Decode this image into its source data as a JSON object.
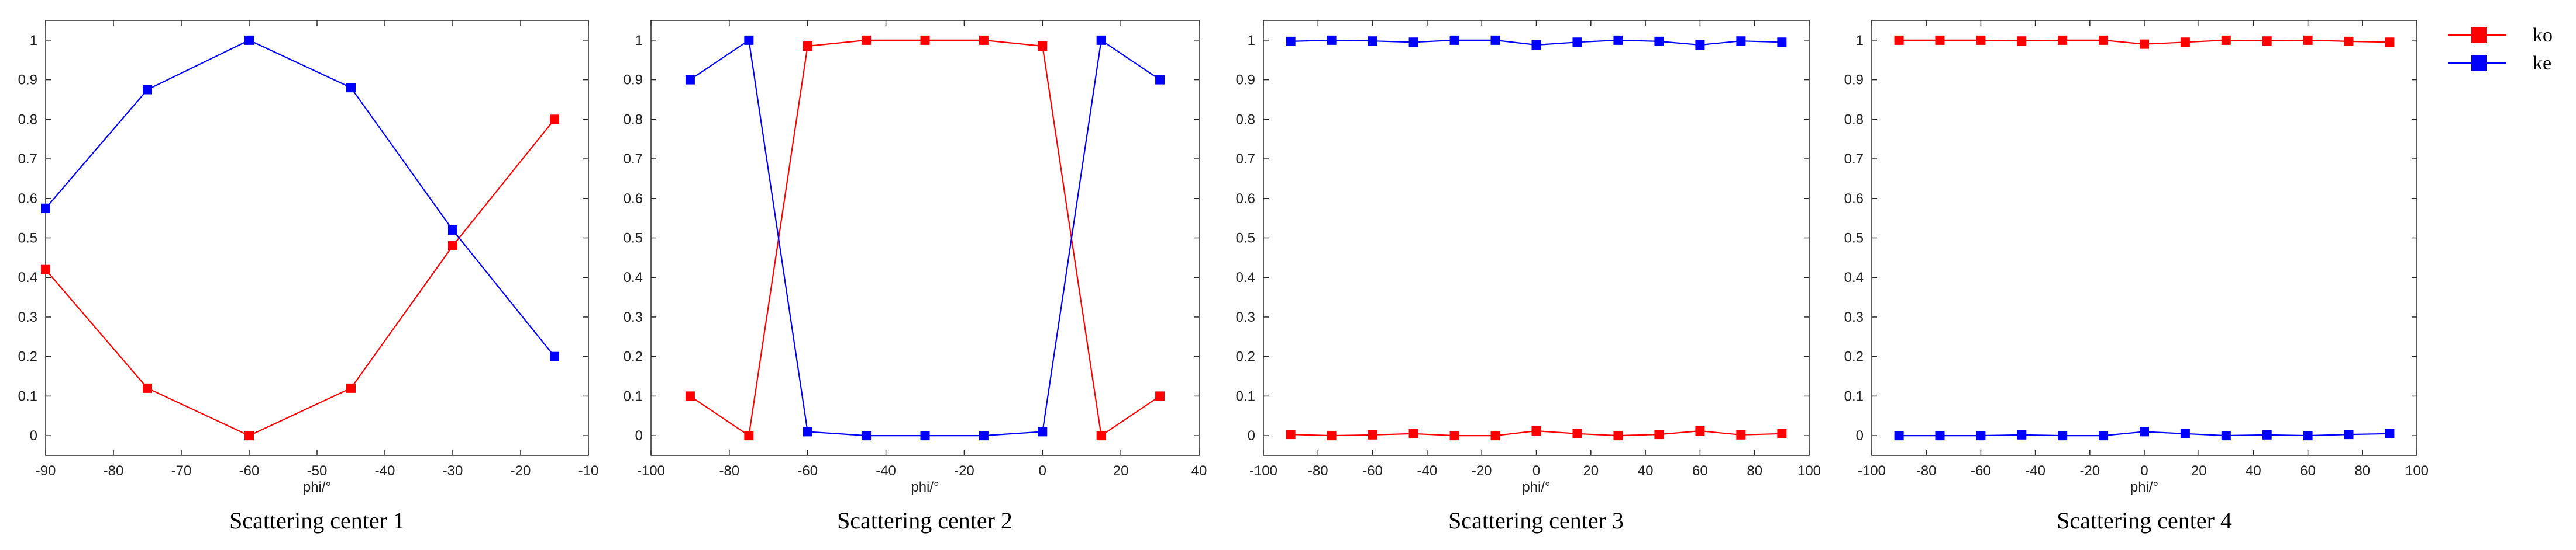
{
  "legend": {
    "series": [
      {
        "name": "ko",
        "color": "#ff0000"
      },
      {
        "name": "ke",
        "color": "#0000ff"
      }
    ]
  },
  "chart_data": [
    {
      "type": "line",
      "title": "Scattering center 1",
      "xlabel": "phi/°",
      "ylabel": "",
      "xlim": [
        -90,
        -10
      ],
      "ylim": [
        -0.05,
        1.05
      ],
      "xticks": [
        -90,
        -80,
        -70,
        -60,
        -50,
        -40,
        -30,
        -20,
        -10
      ],
      "yticks": [
        0,
        0.1,
        0.2,
        0.3,
        0.4,
        0.5,
        0.6,
        0.7,
        0.8,
        0.9,
        1
      ],
      "x": [
        -90,
        -75,
        -60,
        -45,
        -30,
        -15
      ],
      "series": [
        {
          "name": "ko",
          "color": "#ff0000",
          "values": [
            0.42,
            0.12,
            0.0,
            0.12,
            0.48,
            0.8
          ]
        },
        {
          "name": "ke",
          "color": "#0000ff",
          "values": [
            0.575,
            0.875,
            1.0,
            0.88,
            0.52,
            0.2
          ]
        }
      ]
    },
    {
      "type": "line",
      "title": "Scattering center 2",
      "xlabel": "phi/°",
      "ylabel": "",
      "xlim": [
        -100,
        40
      ],
      "ylim": [
        -0.05,
        1.05
      ],
      "xticks": [
        -100,
        -80,
        -60,
        -40,
        -20,
        0,
        20,
        40
      ],
      "yticks": [
        0,
        0.1,
        0.2,
        0.3,
        0.4,
        0.5,
        0.6,
        0.7,
        0.8,
        0.9,
        1
      ],
      "x": [
        -90,
        -75,
        -60,
        -45,
        -30,
        -15,
        0,
        15,
        30
      ],
      "series": [
        {
          "name": "ko",
          "color": "#ff0000",
          "values": [
            0.1,
            0.0,
            0.985,
            1.0,
            1.0,
            1.0,
            0.985,
            0.0,
            0.1
          ]
        },
        {
          "name": "ke",
          "color": "#0000ff",
          "values": [
            0.9,
            1.0,
            0.01,
            0.0,
            0.0,
            0.0,
            0.01,
            1.0,
            0.9
          ]
        }
      ]
    },
    {
      "type": "line",
      "title": "Scattering center 3",
      "xlabel": "phi/°",
      "ylabel": "",
      "xlim": [
        -100,
        100
      ],
      "ylim": [
        -0.05,
        1.05
      ],
      "xticks": [
        -100,
        -80,
        -60,
        -40,
        -20,
        0,
        20,
        40,
        60,
        80,
        100
      ],
      "yticks": [
        0,
        0.1,
        0.2,
        0.3,
        0.4,
        0.5,
        0.6,
        0.7,
        0.8,
        0.9,
        1
      ],
      "x": [
        -90,
        -75,
        -60,
        -45,
        -30,
        -15,
        0,
        15,
        30,
        45,
        60,
        75,
        90
      ],
      "series": [
        {
          "name": "ko",
          "color": "#ff0000",
          "values": [
            0.003,
            0.0,
            0.002,
            0.005,
            0.0,
            0.0,
            0.012,
            0.005,
            0.0,
            0.003,
            0.012,
            0.002,
            0.005
          ]
        },
        {
          "name": "ke",
          "color": "#0000ff",
          "values": [
            0.997,
            1.0,
            0.998,
            0.995,
            1.0,
            1.0,
            0.988,
            0.995,
            1.0,
            0.997,
            0.988,
            0.998,
            0.995
          ]
        }
      ]
    },
    {
      "type": "line",
      "title": "Scattering center 4",
      "xlabel": "phi/°",
      "ylabel": "",
      "xlim": [
        -100,
        100
      ],
      "ylim": [
        -0.05,
        1.05
      ],
      "xticks": [
        -100,
        -80,
        -60,
        -40,
        -20,
        0,
        20,
        40,
        60,
        80,
        100
      ],
      "yticks": [
        0,
        0.1,
        0.2,
        0.3,
        0.4,
        0.5,
        0.6,
        0.7,
        0.8,
        0.9,
        1
      ],
      "x": [
        -90,
        -75,
        -60,
        -45,
        -30,
        -15,
        0,
        15,
        30,
        45,
        60,
        75,
        90
      ],
      "series": [
        {
          "name": "ko",
          "color": "#ff0000",
          "values": [
            1.0,
            1.0,
            1.0,
            0.998,
            1.0,
            1.0,
            0.99,
            0.995,
            1.0,
            0.998,
            1.0,
            0.997,
            0.995
          ]
        },
        {
          "name": "ke",
          "color": "#0000ff",
          "values": [
            0.0,
            0.0,
            0.0,
            0.002,
            0.0,
            0.0,
            0.01,
            0.005,
            0.0,
            0.002,
            0.0,
            0.003,
            0.005
          ]
        }
      ]
    }
  ]
}
